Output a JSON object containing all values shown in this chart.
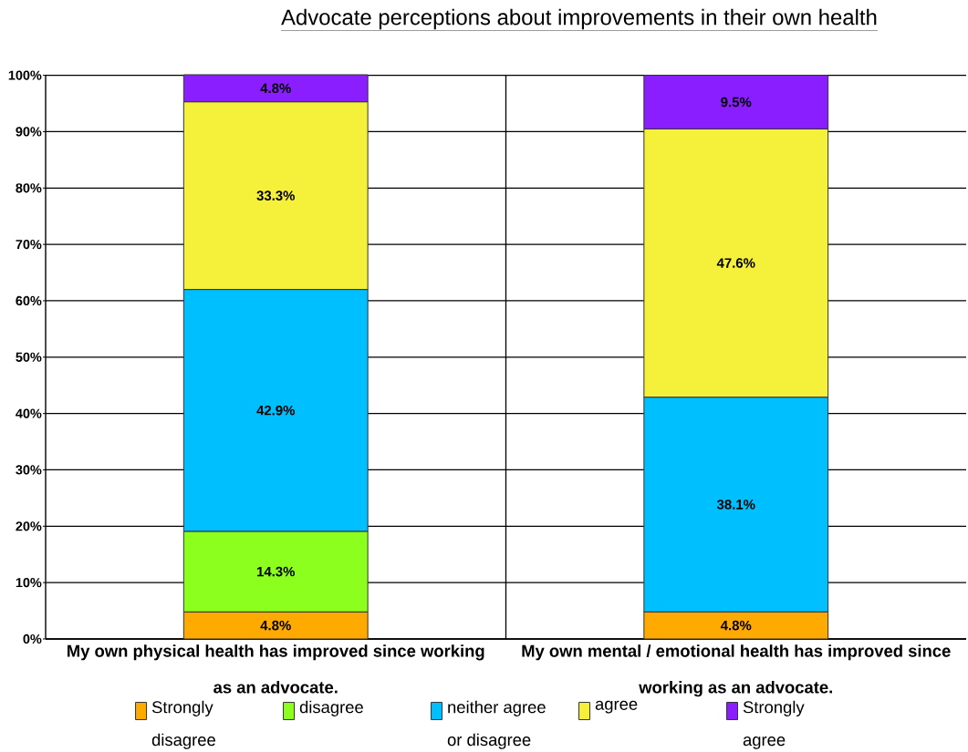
{
  "chart_data": {
    "type": "bar",
    "title": "Advocate perceptions about improvements in their own health",
    "categories": [
      "My own physical health has improved since working as an advocate.",
      "My own mental / emotional health has improved since working as an advocate."
    ],
    "stacked": true,
    "ylim": [
      0,
      100.1
    ],
    "yticks": [
      {
        "value": 0,
        "label": "0%"
      },
      {
        "value": 10,
        "label": "10%"
      },
      {
        "value": 20,
        "label": "20%"
      },
      {
        "value": 30,
        "label": "30%"
      },
      {
        "value": 40,
        "label": "40%"
      },
      {
        "value": 50,
        "label": "50%"
      },
      {
        "value": 60,
        "label": "60%"
      },
      {
        "value": 70,
        "label": "70%"
      },
      {
        "value": 80,
        "label": "80%"
      },
      {
        "value": 90,
        "label": "90%"
      },
      {
        "value": 100,
        "label": "100%"
      }
    ],
    "grid": true,
    "legend": "bottom",
    "series": [
      {
        "name": "Strongly disagree",
        "color": "#ffaa00",
        "values": [
          4.8,
          4.8
        ],
        "value_labels": [
          "4.8%",
          "4.8%"
        ]
      },
      {
        "name": "disagree",
        "color": "#8cff1e",
        "values": [
          14.3,
          null
        ],
        "value_labels": [
          "14.3%",
          null
        ]
      },
      {
        "name": "neither agree or disagree",
        "color": "#00bfff",
        "values": [
          42.9,
          38.1
        ],
        "value_labels": [
          "42.9%",
          "38.1%"
        ]
      },
      {
        "name": "agree",
        "color": "#f5f03a",
        "values": [
          33.3,
          47.6
        ],
        "value_labels": [
          "33.3%",
          "47.6%"
        ]
      },
      {
        "name": "Strongly agree",
        "color": "#8a1eff",
        "values": [
          4.8,
          9.5
        ],
        "value_labels": [
          "4.8%",
          "9.5%"
        ]
      }
    ]
  }
}
